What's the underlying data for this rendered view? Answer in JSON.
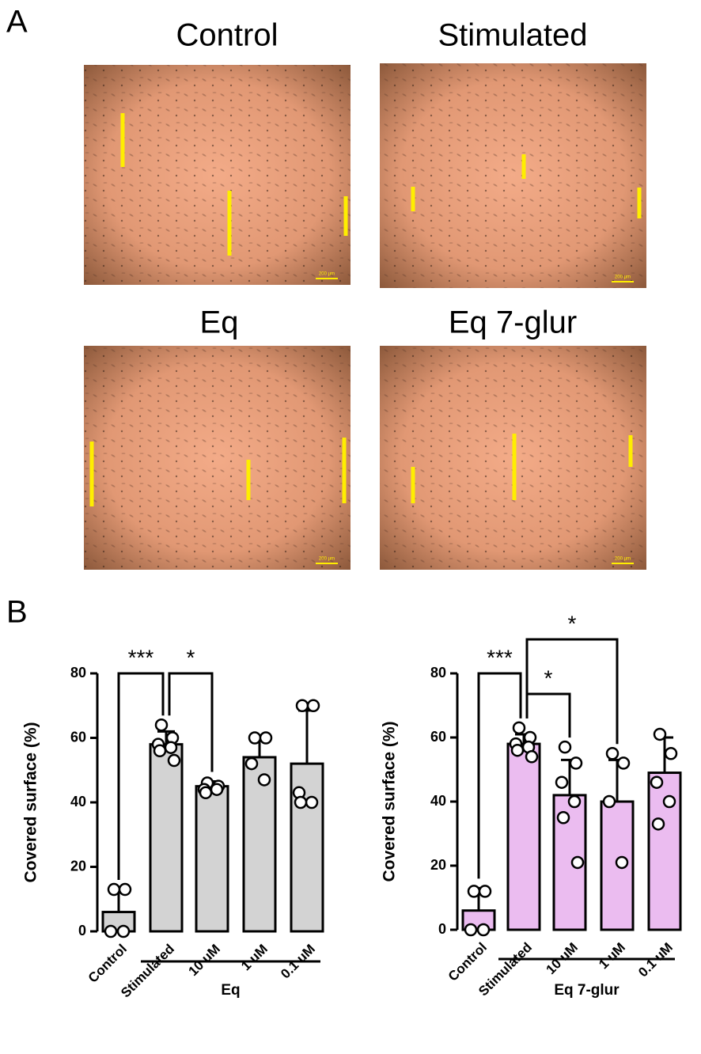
{
  "panel_a": {
    "label": "A",
    "images": [
      {
        "title": "Control",
        "scale_label": "200 µm"
      },
      {
        "title": "Stimulated",
        "scale_label": "200 µm"
      },
      {
        "title": "Eq",
        "scale_label": "200 µm"
      },
      {
        "title": "Eq 7-glur",
        "scale_label": "200 µm"
      }
    ]
  },
  "panel_b": {
    "label": "B"
  },
  "chart_data": [
    {
      "type": "bar",
      "ylabel": "Covered surface (%)",
      "categories": [
        "Control",
        "Stimulated",
        "10 uM",
        "1 uM",
        "0.1 uM"
      ],
      "values": [
        6,
        58,
        45,
        54,
        52
      ],
      "errors": [
        7,
        4,
        1.5,
        6.5,
        16.5
      ],
      "points": [
        [
          13,
          13,
          0,
          0
        ],
        [
          64,
          60,
          58,
          57,
          56,
          53
        ],
        [
          46,
          45,
          44,
          44,
          43
        ],
        [
          60,
          60,
          52,
          47
        ],
        [
          70,
          70,
          43,
          40,
          40
        ]
      ],
      "color": "#d3d3d3",
      "ylim": [
        0,
        80
      ],
      "yticks": [
        0,
        20,
        40,
        60,
        80
      ],
      "group_label": "Eq",
      "significance": [
        {
          "pair": [
            0,
            1
          ],
          "label": "***"
        },
        {
          "pair": [
            1,
            2
          ],
          "label": "*"
        }
      ]
    },
    {
      "type": "bar",
      "ylabel": "Covered surface (%)",
      "categories": [
        "Control",
        "Stimulated",
        "10 uM",
        "1 uM",
        "0.1 uM"
      ],
      "values": [
        6,
        58,
        42,
        40,
        49
      ],
      "errors": [
        7,
        3,
        11,
        13,
        11
      ],
      "points": [
        [
          12,
          12,
          0,
          0
        ],
        [
          63,
          60,
          58,
          57,
          56,
          54
        ],
        [
          57,
          52,
          46,
          40,
          35,
          21
        ],
        [
          55,
          52,
          40,
          21
        ],
        [
          61,
          55,
          46,
          40,
          33
        ]
      ],
      "color": "#ebbcf0",
      "ylim": [
        0,
        80
      ],
      "yticks": [
        0,
        20,
        40,
        60,
        80
      ],
      "group_label": "Eq 7-glur",
      "significance": [
        {
          "pair": [
            0,
            1
          ],
          "label": "***"
        },
        {
          "pair": [
            1,
            2
          ],
          "label": "*"
        },
        {
          "pair": [
            1,
            3
          ],
          "label": "*"
        }
      ]
    }
  ]
}
